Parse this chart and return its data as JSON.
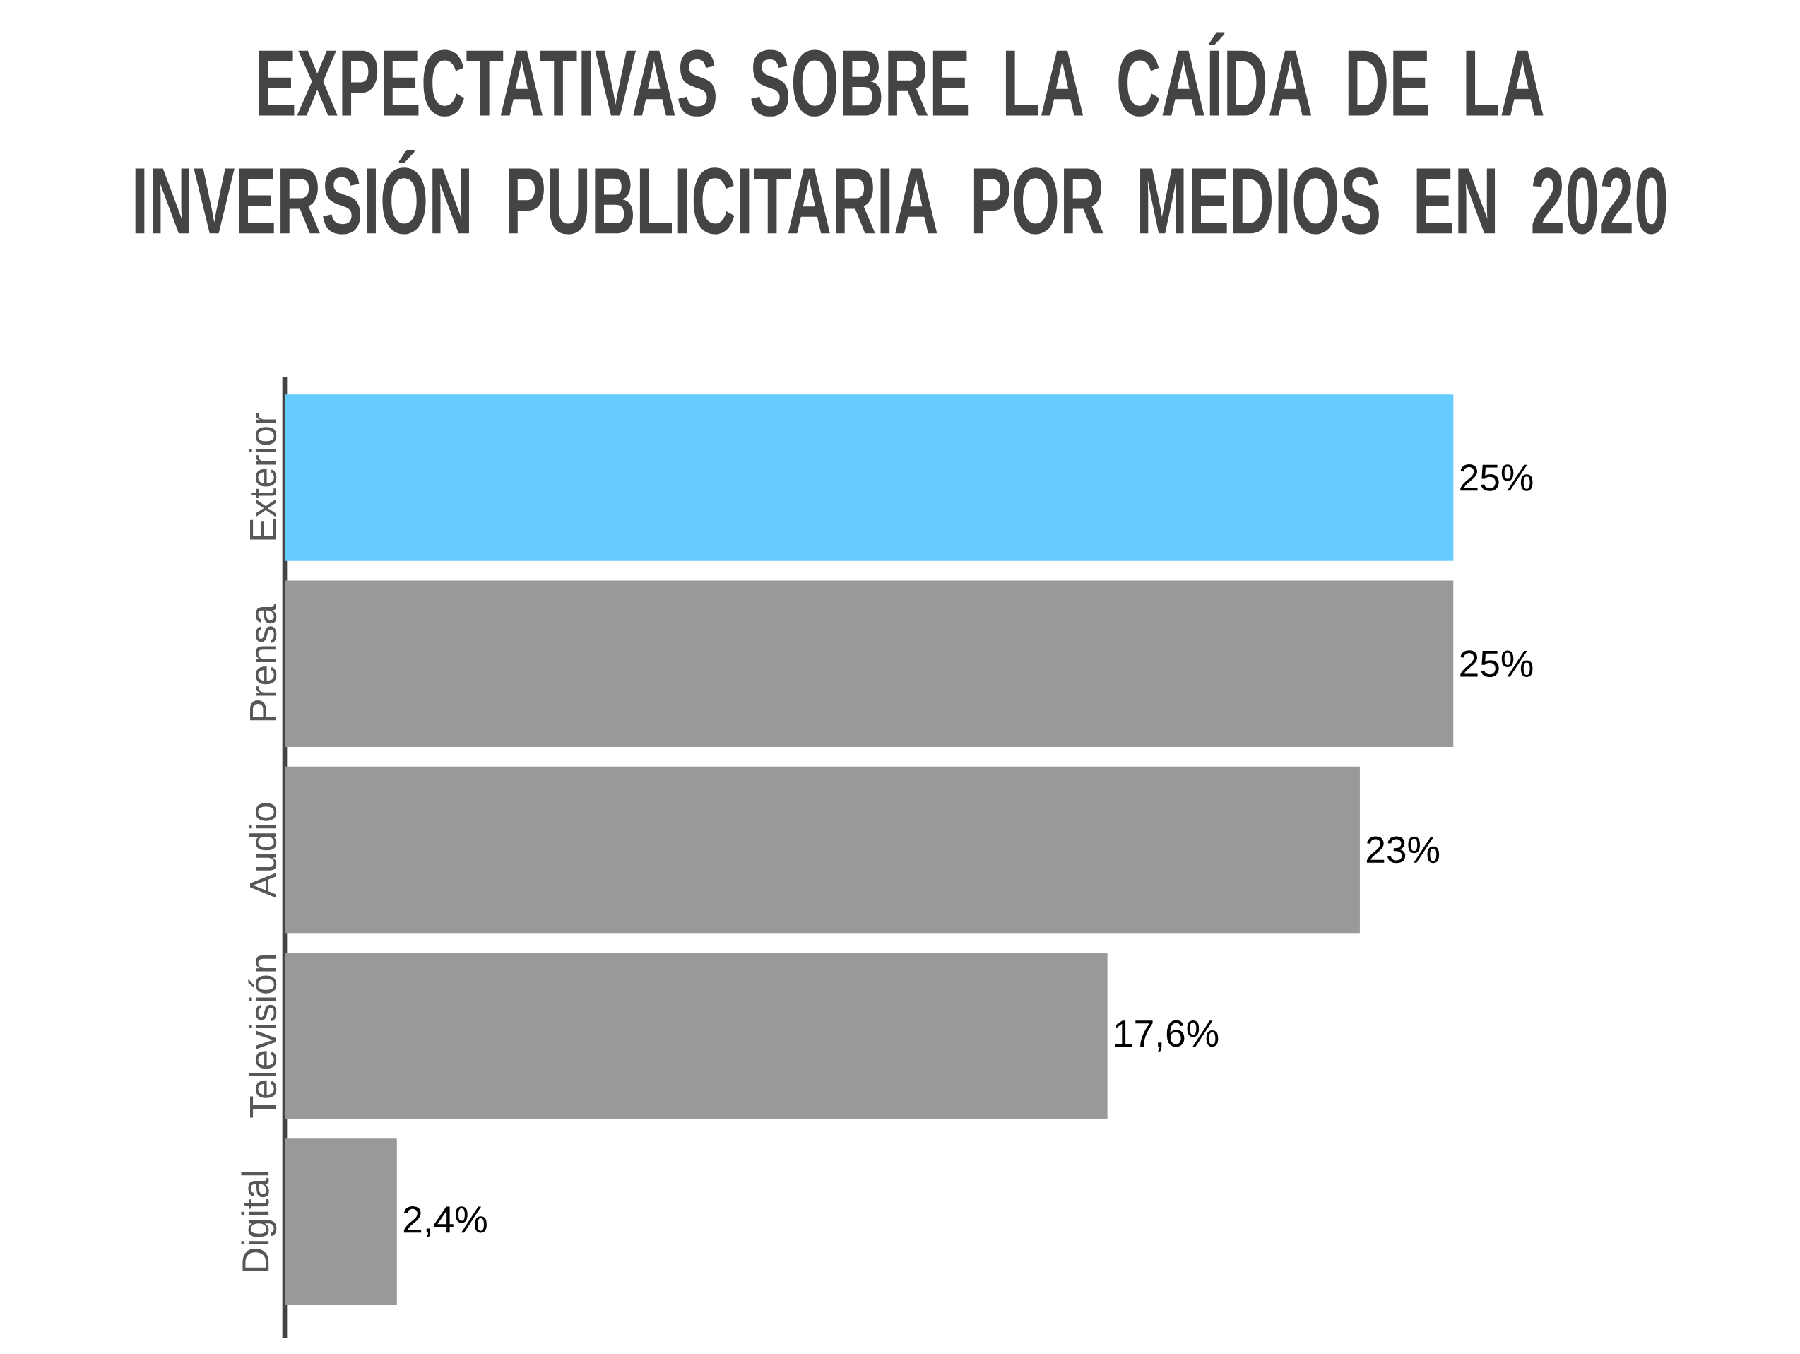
{
  "chart_data": {
    "type": "bar",
    "orientation": "horizontal",
    "title": "EXPECTATIVAS SOBRE LA CAÍDA DE LA INVERSIÓN PUBLICITARIA POR MEDIOS EN 2020",
    "categories": [
      "Exterior",
      "Prensa",
      "Audio",
      "Televisión",
      "Digital"
    ],
    "values": [
      25,
      25,
      23,
      17.6,
      2.4
    ],
    "value_labels": [
      "25%",
      "25%",
      "23%",
      "17,6%",
      "2,4%"
    ],
    "colors": [
      "#66ccff",
      "#999999",
      "#999999",
      "#999999",
      "#999999"
    ],
    "data_labels": true
  }
}
